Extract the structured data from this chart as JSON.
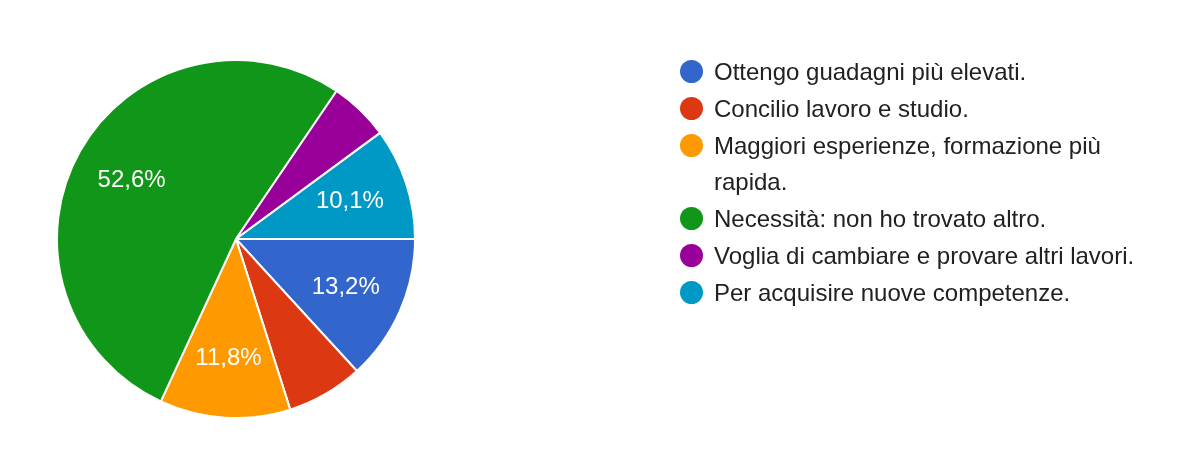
{
  "chart_data": {
    "type": "pie",
    "categories": [
      "Ottengo guadagni più elevati.",
      "Concilio lavoro e studio.",
      "Maggiori esperienze, formazione più rapida.",
      "Necessità: non ho trovato altro.",
      "Voglia di cambiare e provare altri lavori.",
      "Per acquisire nuove competenze."
    ],
    "values": [
      13.2,
      6.9,
      11.8,
      52.6,
      5.4,
      10.1
    ],
    "colors": [
      "#3366cc",
      "#dc3912",
      "#ff9900",
      "#109618",
      "#990099",
      "#0099c6"
    ],
    "value_labels": [
      "13,2%",
      null,
      "11,8%",
      "52,6%",
      null,
      "10,1%"
    ],
    "legend": "right"
  }
}
